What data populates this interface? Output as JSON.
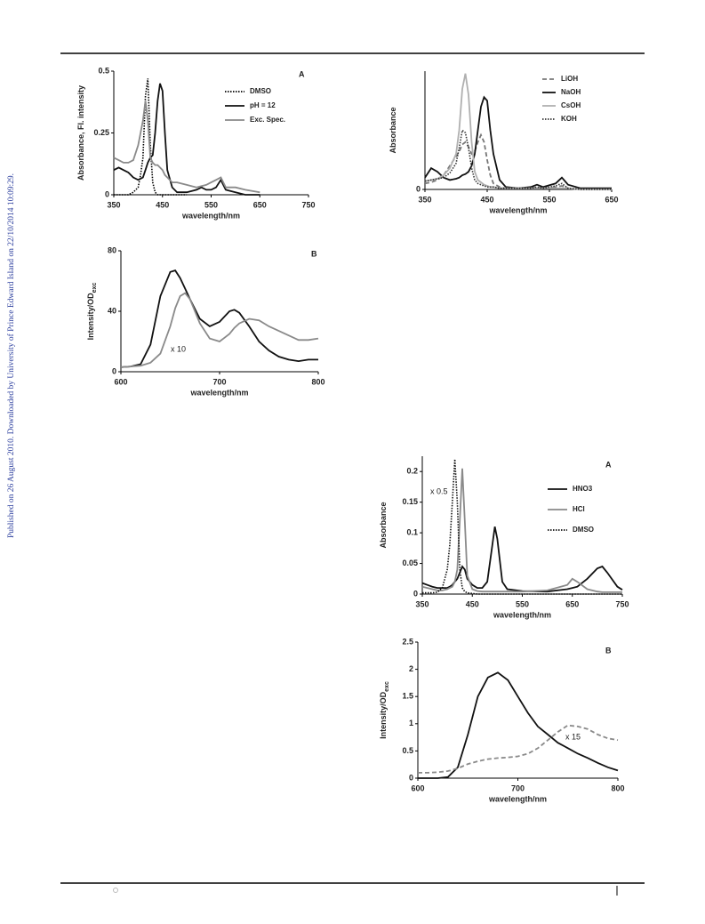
{
  "watermark": "Published on 26 August 2010. Downloaded by University of Prince Edward Island on 22/10/2014 10:09:29.",
  "chart_data": [
    {
      "type": "line",
      "panel": "A",
      "xlabel": "wavelength/nm",
      "ylabel": "Absorbance, Fl. intensity",
      "xlim": [
        350,
        750
      ],
      "xticks": [
        350,
        450,
        550,
        650,
        750
      ],
      "ylim": [
        0,
        0.5
      ],
      "yticks": [
        0,
        0.25,
        0.5
      ],
      "x": [
        350,
        360,
        370,
        380,
        390,
        400,
        405,
        410,
        415,
        420,
        425,
        430,
        435,
        440,
        445,
        450,
        455,
        460,
        470,
        480,
        500,
        520,
        530,
        540,
        550,
        560,
        570,
        580,
        600,
        620,
        650,
        700,
        750
      ],
      "series": [
        {
          "name": "DMSO",
          "color": "#000000",
          "dash": "dotted",
          "values": [
            0,
            0,
            0,
            0,
            0.01,
            0.03,
            0.08,
            0.15,
            0.4,
            0.47,
            0.2,
            0.05,
            0.01,
            0,
            0,
            0,
            0,
            0,
            0,
            0,
            0,
            null,
            null,
            null,
            null,
            null,
            null,
            null,
            null,
            null,
            null,
            null,
            null
          ]
        },
        {
          "name": "pH = 12",
          "color": "#111111",
          "dash": "solid",
          "values": [
            0.1,
            0.11,
            0.1,
            0.09,
            0.07,
            0.06,
            0.065,
            0.07,
            0.1,
            0.13,
            0.15,
            0.16,
            0.25,
            0.38,
            0.45,
            0.42,
            0.25,
            0.1,
            0.03,
            0.01,
            0.01,
            0.02,
            0.03,
            0.02,
            0.02,
            0.03,
            0.06,
            0.02,
            0.01,
            0,
            0,
            null,
            null
          ]
        },
        {
          "name": "Exc. Spec.",
          "color": "#8a8a8a",
          "dash": "solid",
          "values": [
            0.15,
            0.14,
            0.13,
            0.13,
            0.14,
            0.2,
            0.25,
            0.3,
            0.38,
            0.3,
            0.15,
            0.13,
            0.12,
            0.12,
            0.11,
            0.1,
            0.08,
            0.07,
            0.05,
            0.05,
            0.04,
            0.03,
            0.035,
            0.04,
            0.05,
            0.06,
            0.07,
            0.03,
            0.03,
            0.02,
            0.01,
            null,
            null
          ]
        }
      ]
    },
    {
      "type": "line",
      "ylabel": "Absorbance",
      "xlabel": "wavelength/nm",
      "xlim": [
        350,
        650
      ],
      "xticks": [
        350,
        450,
        550,
        650
      ],
      "ylim": [
        0,
        1
      ],
      "yticks": [
        0
      ],
      "x": [
        350,
        360,
        370,
        380,
        390,
        400,
        405,
        410,
        415,
        420,
        425,
        430,
        435,
        440,
        445,
        450,
        455,
        460,
        470,
        480,
        500,
        520,
        530,
        540,
        560,
        570,
        580,
        600,
        650
      ],
      "series": [
        {
          "name": "LiOH",
          "color": "#777777",
          "dash": "dashed",
          "values": [
            0.05,
            0.06,
            0.08,
            0.12,
            0.2,
            0.28,
            0.32,
            0.38,
            0.4,
            0.36,
            0.3,
            0.32,
            0.4,
            0.46,
            0.4,
            0.25,
            0.12,
            0.05,
            0.02,
            0.01,
            0.01,
            0.01,
            0.02,
            0.01,
            0.02,
            0.03,
            0.01,
            0,
            0
          ]
        },
        {
          "name": "NaOH",
          "color": "#111111",
          "dash": "solid",
          "values": [
            0.1,
            0.18,
            0.15,
            0.1,
            0.08,
            0.09,
            0.1,
            0.12,
            0.13,
            0.15,
            0.2,
            0.3,
            0.5,
            0.7,
            0.78,
            0.75,
            0.5,
            0.3,
            0.08,
            0.02,
            0.01,
            0.02,
            0.04,
            0.02,
            0.05,
            0.1,
            0.04,
            0.01,
            0.01
          ]
        },
        {
          "name": "CsOH",
          "color": "#b0b0b0",
          "dash": "solid",
          "values": [
            0.07,
            0.08,
            0.09,
            0.12,
            0.18,
            0.3,
            0.5,
            0.85,
            0.98,
            0.8,
            0.4,
            0.15,
            0.08,
            0.06,
            0.04,
            0.03,
            0.02,
            0.02,
            0.01,
            0.01,
            0.01,
            0.01,
            0.01,
            0.01,
            0.01,
            0.01,
            0.01,
            0,
            0
          ]
        },
        {
          "name": "KOH",
          "color": "#333333",
          "dash": "dotted",
          "values": [
            0.07,
            0.08,
            0.09,
            0.1,
            0.14,
            0.22,
            0.35,
            0.5,
            0.48,
            0.35,
            0.18,
            0.08,
            0.05,
            0.04,
            0.03,
            0.02,
            0.02,
            0.02,
            0.01,
            0.01,
            0.01,
            0.01,
            0.02,
            0.01,
            0.03,
            0.05,
            0.01,
            0,
            0
          ]
        }
      ]
    },
    {
      "type": "line",
      "panel": "B",
      "xlabel": "wavelength/nm",
      "ylabel": "Intensity/OD",
      "ylabel_subscript": "exc",
      "annotation": "x 10",
      "xlim": [
        600,
        800
      ],
      "xticks": [
        600,
        700,
        800
      ],
      "ylim": [
        0,
        80
      ],
      "yticks": [
        0,
        40,
        80
      ],
      "x": [
        600,
        610,
        620,
        630,
        640,
        650,
        655,
        660,
        665,
        670,
        680,
        690,
        700,
        710,
        715,
        720,
        730,
        740,
        750,
        760,
        770,
        780,
        790,
        800
      ],
      "series": [
        {
          "color": "#111111",
          "dash": "solid",
          "values": [
            3,
            3.5,
            5,
            18,
            50,
            66,
            67,
            62,
            55,
            48,
            35,
            30,
            33,
            40,
            41,
            39,
            30,
            20,
            14,
            10,
            8,
            7,
            8,
            8
          ]
        },
        {
          "color": "#8a8a8a",
          "dash": "solid",
          "values": [
            3,
            3.5,
            4,
            6,
            12,
            30,
            42,
            50,
            52,
            48,
            32,
            22,
            20,
            25,
            29,
            32,
            35,
            34,
            30,
            27,
            24,
            21,
            21,
            22
          ]
        }
      ]
    },
    {
      "type": "line",
      "panel": "A",
      "xlabel": "wavelength/nm",
      "ylabel": "Absorbance",
      "annotation": "x 0.5",
      "xlim": [
        350,
        750
      ],
      "xticks": [
        350,
        450,
        550,
        650,
        750
      ],
      "ylim": [
        0,
        0.225
      ],
      "yticks": [
        0,
        0.05,
        0.1,
        0.15,
        0.2
      ],
      "x": [
        350,
        360,
        370,
        380,
        390,
        400,
        405,
        410,
        415,
        420,
        425,
        430,
        435,
        440,
        450,
        460,
        470,
        480,
        490,
        495,
        500,
        510,
        520,
        550,
        600,
        640,
        650,
        660,
        680,
        700,
        710,
        720,
        740,
        750
      ],
      "series": [
        {
          "name": "HNO3",
          "color": "#111111",
          "dash": "solid",
          "values": [
            0.018,
            0.015,
            0.012,
            0.01,
            0.01,
            0.01,
            0.012,
            0.015,
            0.02,
            0.025,
            0.035,
            0.045,
            0.04,
            0.025,
            0.015,
            0.01,
            0.01,
            0.02,
            0.08,
            0.11,
            0.09,
            0.02,
            0.008,
            0.005,
            0.004,
            0.008,
            0.01,
            0.012,
            0.025,
            0.042,
            0.045,
            0.035,
            0.012,
            0.007
          ]
        },
        {
          "name": "HCl",
          "color": "#8a8a8a",
          "dash": "solid",
          "values": [
            0.012,
            0.01,
            0.008,
            0.006,
            0.006,
            0.008,
            0.01,
            0.012,
            0.02,
            0.04,
            0.12,
            0.205,
            0.12,
            0.03,
            0.008,
            0.005,
            0.004,
            0.004,
            0.004,
            0.004,
            0.004,
            0.004,
            0.004,
            0.004,
            0.006,
            0.015,
            0.025,
            0.02,
            0.008,
            0.004,
            0.003,
            0.003,
            0.003,
            0.003
          ]
        },
        {
          "name": "DMSO",
          "color": "#111111",
          "dash": "dotted",
          "values": [
            0.002,
            0.002,
            0.002,
            0.003,
            0.01,
            0.04,
            0.08,
            0.15,
            0.22,
            0.15,
            0.04,
            0.01,
            0.004,
            0.002,
            0.001,
            0,
            0,
            0,
            0,
            0,
            0,
            0,
            0,
            0,
            0,
            0,
            0,
            0,
            0,
            0,
            0,
            0,
            0,
            0
          ]
        }
      ]
    },
    {
      "type": "line",
      "panel": "B",
      "xlabel": "wavelength/nm",
      "ylabel": "Intensity/OD",
      "ylabel_subscript": "exc",
      "annotation": "x 15",
      "xlim": [
        600,
        800
      ],
      "xticks": [
        600,
        700,
        800
      ],
      "ylim": [
        0,
        2.5
      ],
      "yticks": [
        0,
        0.5,
        1,
        1.5,
        2,
        2.5
      ],
      "x": [
        600,
        610,
        620,
        630,
        640,
        650,
        660,
        670,
        680,
        690,
        700,
        710,
        720,
        730,
        740,
        750,
        760,
        770,
        780,
        790,
        800
      ],
      "series": [
        {
          "color": "#111111",
          "dash": "solid",
          "values": [
            0,
            0,
            0,
            0.02,
            0.2,
            0.8,
            1.5,
            1.85,
            1.94,
            1.8,
            1.5,
            1.2,
            0.95,
            0.8,
            0.65,
            0.55,
            0.45,
            0.37,
            0.28,
            0.2,
            0.14
          ]
        },
        {
          "color": "#8a8a8a",
          "dash": "dashed",
          "values": [
            0.1,
            0.1,
            0.11,
            0.13,
            0.18,
            0.26,
            0.31,
            0.35,
            0.37,
            0.38,
            0.4,
            0.45,
            0.55,
            0.7,
            0.85,
            0.97,
            0.95,
            0.9,
            0.8,
            0.73,
            0.7
          ]
        }
      ]
    }
  ]
}
